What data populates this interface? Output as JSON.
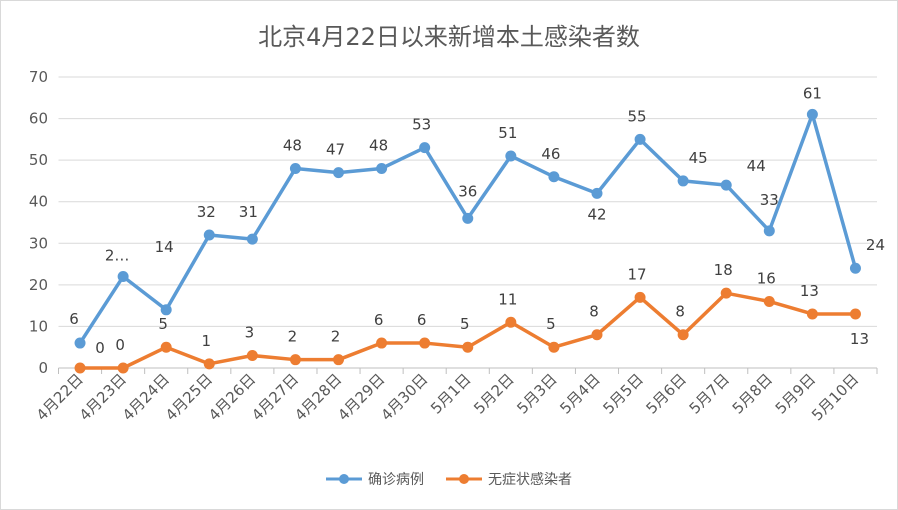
{
  "chart_data": {
    "type": "line",
    "title": "北京4月22日以来新增本土感染者数",
    "categories": [
      "4月22日",
      "4月23日",
      "4月24日",
      "4月25日",
      "4月26日",
      "4月27日",
      "4月28日",
      "4月29日",
      "4月30日",
      "5月1日",
      "5月2日",
      "5月3日",
      "5月4日",
      "5月5日",
      "5月6日",
      "5月7日",
      "5月8日",
      "5月9日",
      "5月10日"
    ],
    "series": [
      {
        "name": "确诊病例",
        "color": "#5B9BD5",
        "values": [
          6,
          22,
          14,
          32,
          31,
          48,
          47,
          48,
          53,
          36,
          51,
          46,
          42,
          55,
          45,
          44,
          33,
          61,
          24
        ],
        "labels": [
          "6",
          "2…",
          "14",
          "32",
          "31",
          "48",
          "47",
          "48",
          "53",
          "36",
          "51",
          "46",
          "42",
          "55",
          "45",
          "44",
          "33",
          "61",
          "24"
        ]
      },
      {
        "name": "无症状感染者",
        "color": "#ED7D31",
        "values": [
          0,
          0,
          5,
          1,
          3,
          2,
          2,
          6,
          6,
          5,
          11,
          5,
          8,
          17,
          8,
          18,
          16,
          13,
          13
        ],
        "labels": [
          "0",
          "0",
          "5",
          "1",
          "3",
          "2",
          "2",
          "6",
          "6",
          "5",
          "11",
          "5",
          "8",
          "17",
          "8",
          "18",
          "16",
          "13",
          "13"
        ]
      }
    ],
    "ylim": [
      0,
      70
    ],
    "yticks": [
      0,
      10,
      20,
      30,
      40,
      50,
      60,
      70
    ],
    "grid": true,
    "legend": "bottom"
  }
}
